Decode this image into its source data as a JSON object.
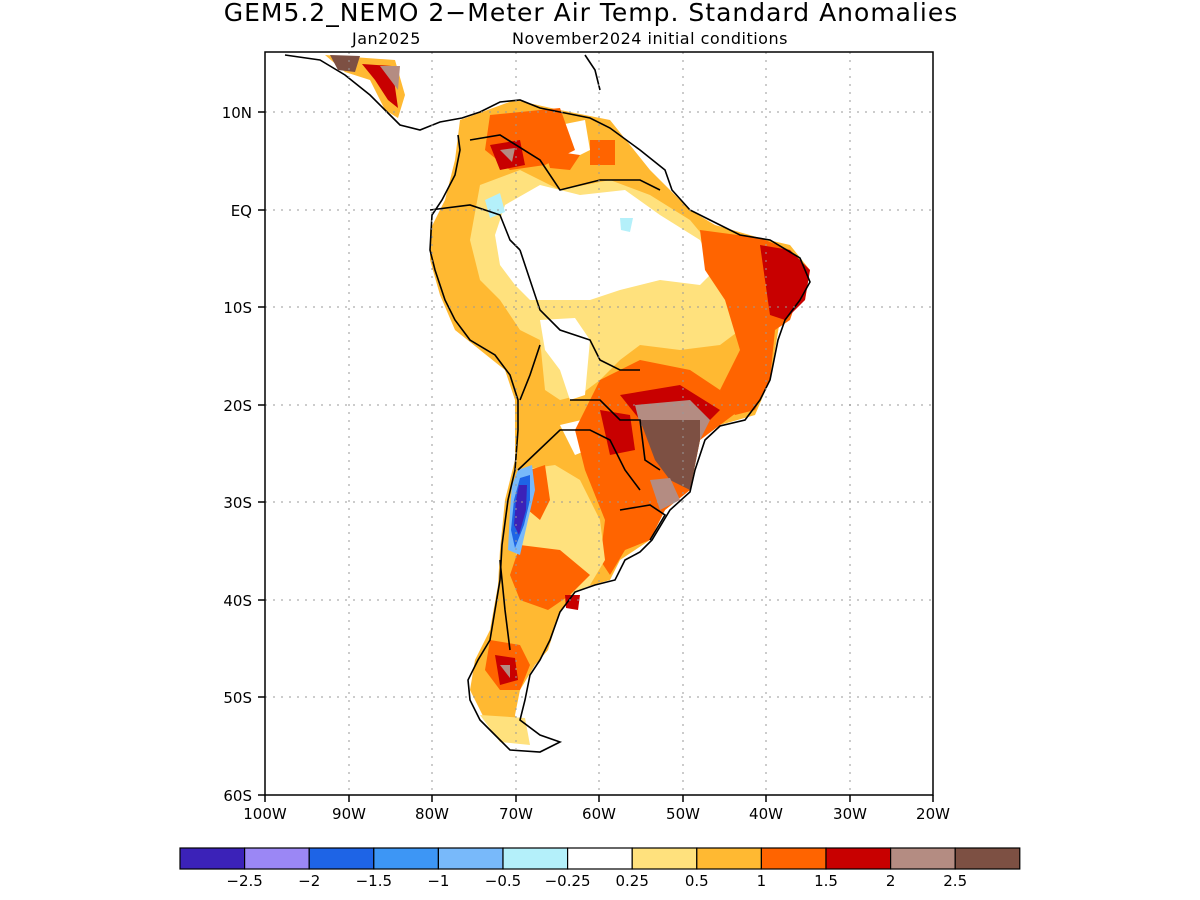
{
  "title": "GEM5.2_NEMO 2−Meter Air Temp. Standard Anomalies",
  "subtitle_month": "Jan2025",
  "subtitle_ic": "November2024 initial conditions",
  "axes": {
    "lat_labels": [
      "10N",
      "EQ",
      "10S",
      "20S",
      "30S",
      "40S",
      "50S",
      "60S"
    ],
    "lon_labels": [
      "100W",
      "90W",
      "80W",
      "70W",
      "60W",
      "50W",
      "40W",
      "30W",
      "20W"
    ],
    "lat_range": [
      -60,
      16
    ],
    "lon_range": [
      -100,
      -20
    ],
    "grid": "dotted"
  },
  "colorbar": {
    "labels": [
      "−2.5",
      "−2",
      "−1.5",
      "−1",
      "−0.5",
      "−0.25",
      "0.25",
      "0.5",
      "1",
      "1.5",
      "2",
      "2.5"
    ],
    "colors": [
      "#3b22b8",
      "#9b87f5",
      "#1e64e6",
      "#3d96f5",
      "#78b9fa",
      "#b4f0fa",
      "#ffffff",
      "#ffe17d",
      "#ffb932",
      "#ff6400",
      "#c80000",
      "#b48c82",
      "#7d5043"
    ]
  }
}
